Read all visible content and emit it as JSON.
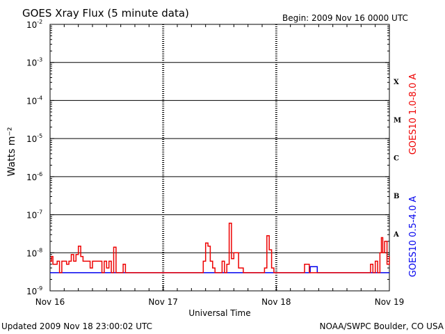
{
  "header": {
    "title": "GOES Xray Flux (5 minute data)",
    "begin": "Begin:  2009 Nov 16 0000 UTC"
  },
  "footer": {
    "updated": "Updated 2009 Nov 18 23:00:02 UTC",
    "credit": "NOAA/SWPC Boulder, CO USA"
  },
  "colors": {
    "long_channel": "#ee0000",
    "short_channel": "#0000ee",
    "axes": "#000000"
  },
  "chart_data": {
    "type": "line",
    "title": "GOES Xray Flux (5 minute data)",
    "xlabel": "Universal Time",
    "ylabel": "Watts m⁻²",
    "y_scale": "log",
    "ylim": [
      1e-09,
      0.01
    ],
    "y_tick_labels": [
      {
        "base": "10",
        "exp": "-2",
        "value": 0.01
      },
      {
        "base": "10",
        "exp": "-3",
        "value": 0.001
      },
      {
        "base": "10",
        "exp": "-4",
        "value": 0.0001
      },
      {
        "base": "10",
        "exp": "-5",
        "value": 1e-05
      },
      {
        "base": "10",
        "exp": "-6",
        "value": 1e-06
      },
      {
        "base": "10",
        "exp": "-7",
        "value": 1e-07
      },
      {
        "base": "10",
        "exp": "-8",
        "value": 1e-08
      },
      {
        "base": "10",
        "exp": "-9",
        "value": 1e-09
      }
    ],
    "xlim_hours": [
      0,
      72
    ],
    "x_tick_labels": [
      {
        "label": "Nov 16",
        "hour": 0
      },
      {
        "label": "Nov 17",
        "hour": 24
      },
      {
        "label": "Nov 18",
        "hour": 48
      },
      {
        "label": "Nov 19",
        "hour": 72
      }
    ],
    "flare_classes": [
      {
        "label": "X",
        "value": 0.0001
      },
      {
        "label": "M",
        "value": 1e-05
      },
      {
        "label": "C",
        "value": 1e-06
      },
      {
        "label": "B",
        "value": 1e-07
      },
      {
        "label": "A",
        "value": 1e-08
      }
    ],
    "grid": "horizontal at each decade; dashed day separators",
    "series": [
      {
        "name": "GOES10 1.0-8.0 A",
        "color": "#ee0000",
        "hour": [
          0,
          0.3,
          0.6,
          0.9,
          1.2,
          1.5,
          2,
          2.5,
          3,
          3.5,
          4,
          4.5,
          5,
          5.5,
          6,
          6.5,
          7,
          7.5,
          8,
          8.5,
          9,
          9.5,
          10,
          10.5,
          11,
          11.5,
          12,
          12.5,
          13,
          13.5,
          14,
          14.5,
          15,
          15.5,
          16,
          16.5,
          17,
          17.5,
          18,
          18.5,
          19,
          20,
          21,
          22,
          23,
          24,
          25,
          26,
          27,
          28,
          29,
          30,
          31,
          32,
          32.5,
          33,
          33.5,
          34,
          34.5,
          35,
          35.5,
          36,
          36.5,
          37,
          37.5,
          38,
          38.5,
          39,
          40,
          41,
          42,
          43,
          44,
          45,
          45.5,
          46,
          46.5,
          47,
          47.5,
          48,
          48.5,
          49,
          50,
          51,
          52,
          53,
          54,
          55,
          56,
          57,
          58,
          59,
          60,
          61,
          62,
          63,
          64,
          65,
          66,
          67,
          68,
          68.5,
          69,
          69.5,
          70,
          70.3,
          70.6,
          71,
          71.5,
          72
        ],
        "flux": [
          6e-09,
          8e-09,
          5e-09,
          5e-09,
          5e-09,
          6e-09,
          3e-09,
          6e-09,
          6e-09,
          5e-09,
          6e-09,
          9e-09,
          6e-09,
          9e-09,
          1.5e-08,
          8e-09,
          6e-09,
          6e-09,
          6e-09,
          4e-09,
          6e-09,
          6e-09,
          6e-09,
          6e-09,
          3e-09,
          6e-09,
          4e-09,
          6e-09,
          3e-09,
          1.4e-08,
          3e-09,
          3e-09,
          3e-09,
          5e-09,
          3e-09,
          3e-09,
          3e-09,
          3e-09,
          3e-09,
          3e-09,
          3e-09,
          3e-09,
          3e-09,
          3e-09,
          3e-09,
          3e-09,
          3e-09,
          3e-09,
          3e-09,
          3e-09,
          3e-09,
          3e-09,
          3e-09,
          3e-09,
          6e-09,
          1.8e-08,
          1.5e-08,
          6e-09,
          4e-09,
          3e-09,
          3e-09,
          3e-09,
          6e-09,
          3e-09,
          5e-09,
          6e-08,
          7e-09,
          1e-08,
          4e-09,
          3e-09,
          3e-09,
          3e-09,
          3e-09,
          3e-09,
          4e-09,
          2.8e-08,
          1.2e-08,
          4e-09,
          3e-09,
          3e-09,
          3e-09,
          3e-09,
          3e-09,
          3e-09,
          3e-09,
          3e-09,
          5e-09,
          3e-09,
          3e-09,
          3e-09,
          3e-09,
          3e-09,
          3e-09,
          3e-09,
          3e-09,
          3e-09,
          3e-09,
          3e-09,
          3e-09,
          3e-09,
          5e-09,
          3e-09,
          6e-09,
          3e-09,
          1e-08,
          2.5e-08,
          1e-08,
          2e-08,
          5e-09,
          8e-09,
          4e-09
        ]
      },
      {
        "name": "GOES10 0.5-4.0 A",
        "color": "#0000ee",
        "hour": [
          0,
          10,
          20,
          30,
          40,
          50,
          55,
          55.2,
          56.5,
          56.7,
          65,
          72
        ],
        "flux": [
          3e-09,
          3e-09,
          3e-09,
          3e-09,
          3e-09,
          3e-09,
          3e-09,
          4.3e-09,
          4.3e-09,
          3e-09,
          3e-09,
          3e-09
        ]
      }
    ]
  }
}
